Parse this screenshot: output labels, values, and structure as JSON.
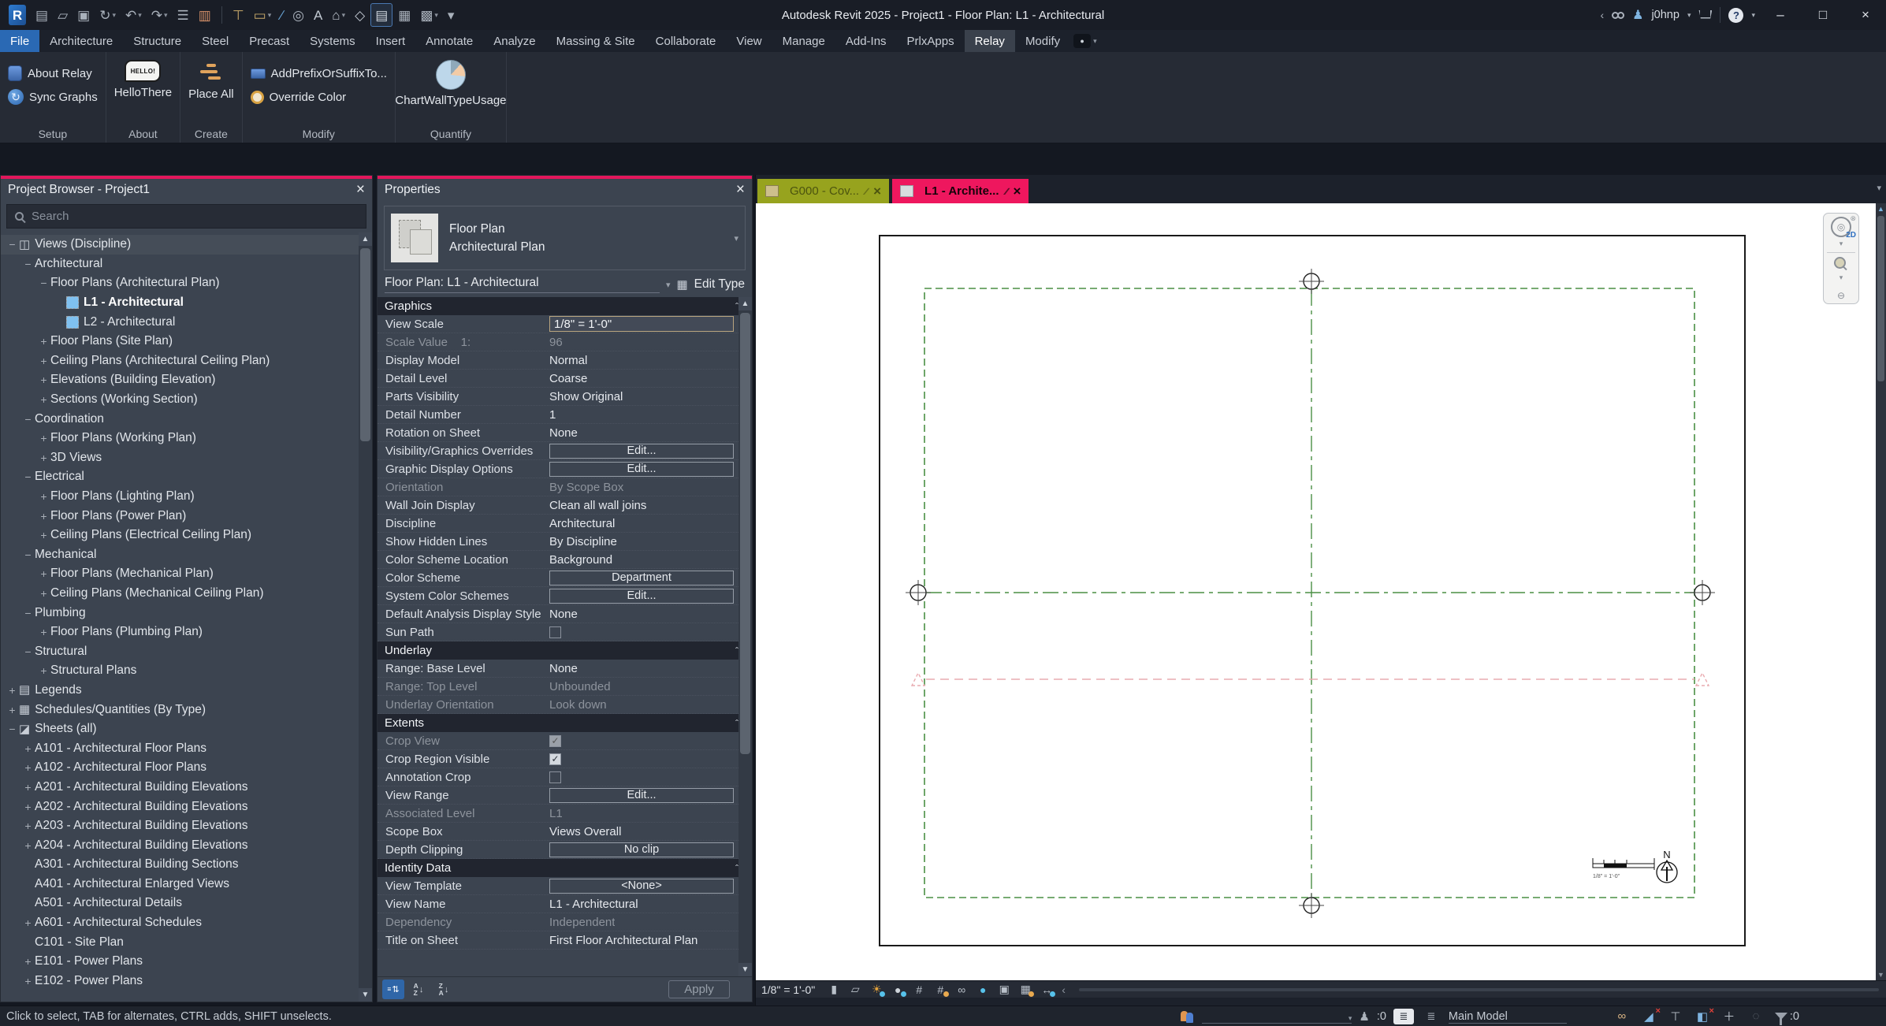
{
  "colors": {
    "accent": "#e2175c",
    "tab_olive": "#97a31e",
    "tab_active_pink": "#ee175e",
    "grid_green": "#4a8f44",
    "marker_pink": "#e9abb0",
    "file_tab_blue": "#2a69b4",
    "level_icon_blue": "#7fc0ef"
  },
  "titlebar": {
    "title": "Autodesk Revit 2025 - Project1 - Floor Plan: L1 - Architectural",
    "username": "j0hnp",
    "qat": [
      {
        "icon": "revit-logo"
      },
      {
        "icon": "document-icon"
      },
      {
        "icon": "open-icon"
      },
      {
        "icon": "save-icon"
      },
      {
        "icon": "sync-with-central-icon",
        "dropdown": true
      },
      {
        "icon": "undo-icon",
        "dropdown": true
      },
      {
        "icon": "redo-icon",
        "dropdown": true
      },
      {
        "icon": "print-icon"
      },
      {
        "icon": "export-icon"
      },
      {
        "sep": true
      },
      {
        "icon": "measure-icon"
      },
      {
        "icon": "aligned-dimension-icon",
        "dropdown": true
      },
      {
        "icon": "detail-line-icon"
      },
      {
        "icon": "tag-by-category-icon"
      },
      {
        "icon": "text-icon"
      },
      {
        "icon": "default-3d-view-icon",
        "dropdown": true
      },
      {
        "icon": "section-icon"
      },
      {
        "icon": "thin-lines-icon",
        "active": true
      },
      {
        "icon": "close-inactive-windows-icon"
      },
      {
        "icon": "switch-windows-icon",
        "dropdown": true
      },
      {
        "icon": "customize-qat-icon"
      }
    ]
  },
  "ribbon": {
    "tabs": [
      {
        "label": "File",
        "variant": "file"
      },
      {
        "label": "Architecture"
      },
      {
        "label": "Structure"
      },
      {
        "label": "Steel"
      },
      {
        "label": "Precast"
      },
      {
        "label": "Systems"
      },
      {
        "label": "Insert"
      },
      {
        "label": "Annotate"
      },
      {
        "label": "Analyze"
      },
      {
        "label": "Massing & Site"
      },
      {
        "label": "Collaborate"
      },
      {
        "label": "View"
      },
      {
        "label": "Manage"
      },
      {
        "label": "Add-Ins"
      },
      {
        "label": "PrlxApps"
      },
      {
        "label": "Relay",
        "variant": "active"
      },
      {
        "label": "Modify"
      }
    ],
    "groups": [
      {
        "label": "Setup",
        "items": [
          {
            "label": "About Relay",
            "icon": "about-relay-icon",
            "size": "small"
          },
          {
            "label": "Sync Graphs",
            "icon": "sync-graphs-icon",
            "size": "small"
          }
        ]
      },
      {
        "label": "About",
        "items": [
          {
            "label": "HelloThere",
            "icon": "hello-there-icon",
            "size": "large"
          }
        ]
      },
      {
        "label": "Create",
        "items": [
          {
            "label": "Place All",
            "icon": "place-all-icon",
            "size": "large"
          }
        ]
      },
      {
        "label": "Modify",
        "items": [
          {
            "label": "AddPrefixOrSuffixTo...",
            "icon": "add-prefix-or-suffix-icon",
            "size": "small"
          },
          {
            "label": "Override Color",
            "icon": "override-color-icon",
            "size": "small"
          }
        ]
      },
      {
        "label": "Quantify",
        "items": [
          {
            "label": "ChartWallTypeUsage",
            "icon": "chart-wall-type-usage-icon",
            "size": "large"
          }
        ]
      }
    ]
  },
  "project_browser": {
    "title": "Project Browser - Project1",
    "search_placeholder": "Search",
    "tree": [
      {
        "label": "Views (Discipline)",
        "level": 0,
        "exp": "-",
        "icon": "views-icon",
        "hl": true
      },
      {
        "label": "Architectural",
        "level": 1,
        "exp": "-"
      },
      {
        "label": "Floor Plans (Architectural Plan)",
        "level": 2,
        "exp": "-"
      },
      {
        "label": "L1 - Architectural",
        "level": 3,
        "icon": "level-icon",
        "selected": true
      },
      {
        "label": "L2 - Architectural",
        "level": 3,
        "icon": "level-icon"
      },
      {
        "label": "Floor Plans (Site Plan)",
        "level": 2,
        "exp": "+"
      },
      {
        "label": "Ceiling Plans (Architectural Ceiling Plan)",
        "level": 2,
        "exp": "+"
      },
      {
        "label": "Elevations (Building Elevation)",
        "level": 2,
        "exp": "+"
      },
      {
        "label": "Sections (Working Section)",
        "level": 2,
        "exp": "+"
      },
      {
        "label": "Coordination",
        "level": 1,
        "exp": "-"
      },
      {
        "label": "Floor Plans (Working Plan)",
        "level": 2,
        "exp": "+"
      },
      {
        "label": "3D Views",
        "level": 2,
        "exp": "+"
      },
      {
        "label": "Electrical",
        "level": 1,
        "exp": "-"
      },
      {
        "label": "Floor Plans (Lighting Plan)",
        "level": 2,
        "exp": "+"
      },
      {
        "label": "Floor Plans (Power Plan)",
        "level": 2,
        "exp": "+"
      },
      {
        "label": "Ceiling Plans (Electrical Ceiling Plan)",
        "level": 2,
        "exp": "+"
      },
      {
        "label": "Mechanical",
        "level": 1,
        "exp": "-"
      },
      {
        "label": "Floor Plans (Mechanical Plan)",
        "level": 2,
        "exp": "+"
      },
      {
        "label": "Ceiling Plans (Mechanical Ceiling Plan)",
        "level": 2,
        "exp": "+"
      },
      {
        "label": "Plumbing",
        "level": 1,
        "exp": "-"
      },
      {
        "label": "Floor Plans (Plumbing Plan)",
        "level": 2,
        "exp": "+"
      },
      {
        "label": "Structural",
        "level": 1,
        "exp": "-"
      },
      {
        "label": "Structural Plans",
        "level": 2,
        "exp": "+"
      },
      {
        "label": "Legends",
        "level": 0,
        "exp": "+",
        "icon": "legends-icon"
      },
      {
        "label": "Schedules/Quantities (By Type)",
        "level": 0,
        "exp": "+",
        "icon": "schedules-icon"
      },
      {
        "label": "Sheets (all)",
        "level": 0,
        "exp": "-",
        "icon": "sheets-icon"
      },
      {
        "label": "A101 - Architectural Floor Plans",
        "level": 1,
        "exp": "+"
      },
      {
        "label": "A102 - Architectural Floor Plans",
        "level": 1,
        "exp": "+"
      },
      {
        "label": "A201 - Architectural Building Elevations",
        "level": 1,
        "exp": "+"
      },
      {
        "label": "A202 - Architectural Building Elevations",
        "level": 1,
        "exp": "+"
      },
      {
        "label": "A203 - Architectural Building Elevations",
        "level": 1,
        "exp": "+"
      },
      {
        "label": "A204 - Architectural Building Elevations",
        "level": 1,
        "exp": "+"
      },
      {
        "label": "A301 - Architectural Building Sections",
        "level": 1
      },
      {
        "label": "A401 - Architectural Enlarged Views",
        "level": 1
      },
      {
        "label": "A501 - Architectural Details",
        "level": 1
      },
      {
        "label": "A601 - Architectural Schedules",
        "level": 1,
        "exp": "+"
      },
      {
        "label": "C101 - Site Plan",
        "level": 1
      },
      {
        "label": "E101 - Power Plans",
        "level": 1,
        "exp": "+"
      },
      {
        "label": "E102 - Power Plans",
        "level": 1,
        "exp": "+"
      }
    ]
  },
  "properties": {
    "title": "Properties",
    "type_line1": "Floor Plan",
    "type_line2": "Architectural Plan",
    "instance_label": "Floor Plan: L1 - Architectural",
    "edit_type_label": "Edit Type",
    "apply_label": "Apply",
    "rows": [
      {
        "section": "Graphics"
      },
      {
        "label": "View Scale",
        "value": "1/8\" = 1'-0\"",
        "kind": "input"
      },
      {
        "label": "Scale Value    1:",
        "value": "96",
        "kind": "text",
        "disabled": true
      },
      {
        "label": "Display Model",
        "value": "Normal",
        "kind": "text"
      },
      {
        "label": "Detail Level",
        "value": "Coarse",
        "kind": "text"
      },
      {
        "label": "Parts Visibility",
        "value": "Show Original",
        "kind": "text"
      },
      {
        "label": "Detail Number",
        "value": "1",
        "kind": "text"
      },
      {
        "label": "Rotation on Sheet",
        "value": "None",
        "kind": "text"
      },
      {
        "label": "Visibility/Graphics Overrides",
        "value": "Edit...",
        "kind": "button"
      },
      {
        "label": "Graphic Display Options",
        "value": "Edit...",
        "kind": "button"
      },
      {
        "label": "Orientation",
        "value": "By Scope Box",
        "kind": "text",
        "disabled": true
      },
      {
        "label": "Wall Join Display",
        "value": "Clean all wall joins",
        "kind": "text"
      },
      {
        "label": "Discipline",
        "value": "Architectural",
        "kind": "text"
      },
      {
        "label": "Show Hidden Lines",
        "value": "By Discipline",
        "kind": "text"
      },
      {
        "label": "Color Scheme Location",
        "value": "Background",
        "kind": "text"
      },
      {
        "label": "Color Scheme",
        "value": "Department",
        "kind": "button"
      },
      {
        "label": "System Color Schemes",
        "value": "Edit...",
        "kind": "button"
      },
      {
        "label": "Default Analysis Display Style",
        "value": "None",
        "kind": "text"
      },
      {
        "label": "Sun Path",
        "kind": "check-off"
      },
      {
        "section": "Underlay"
      },
      {
        "label": "Range: Base Level",
        "value": "None",
        "kind": "text"
      },
      {
        "label": "Range: Top Level",
        "value": "Unbounded",
        "kind": "text",
        "disabled": true
      },
      {
        "label": "Underlay Orientation",
        "value": "Look down",
        "kind": "text",
        "disabled": true
      },
      {
        "section": "Extents"
      },
      {
        "label": "Crop View",
        "kind": "check-on",
        "disabled": true
      },
      {
        "label": "Crop Region Visible",
        "kind": "check-on"
      },
      {
        "label": "Annotation Crop",
        "kind": "check-off"
      },
      {
        "label": "View Range",
        "value": "Edit...",
        "kind": "button"
      },
      {
        "label": "Associated Level",
        "value": "L1",
        "kind": "text",
        "disabled": true
      },
      {
        "label": "Scope Box",
        "value": "Views Overall",
        "kind": "text"
      },
      {
        "label": "Depth Clipping",
        "value": "No clip",
        "kind": "button"
      },
      {
        "section": "Identity Data"
      },
      {
        "label": "View Template",
        "value": "<None>",
        "kind": "button"
      },
      {
        "label": "View Name",
        "value": "L1 - Architectural",
        "kind": "text"
      },
      {
        "label": "Dependency",
        "value": "Independent",
        "kind": "text",
        "disabled": true
      },
      {
        "label": "Title on Sheet",
        "value": "First Floor Architectural Plan",
        "kind": "text"
      }
    ]
  },
  "view_tabs": [
    {
      "label": "G000 - Cov...",
      "icon": "sheet-tab-icon",
      "variant": "olive"
    },
    {
      "label": "L1 - Archite...",
      "icon": "plan-tab-icon",
      "variant": "pink",
      "active": true
    }
  ],
  "view_control_bar": {
    "scale": "1/8\" = 1'-0\"",
    "icons": [
      "detail-level-icon",
      "visual-style-icon",
      "sun-path-icon",
      "shadows-icon",
      "crop-view-icon",
      "show-crop-region-icon",
      "temporary-hide-isolate-icon",
      "reveal-hidden-elements-icon",
      "temporary-view-properties-icon",
      "analytical-model-icon",
      "reveal-constraints-icon"
    ]
  },
  "canvas": {
    "north_label": "N",
    "scalebar_label": "1/8\" = 1'-0\"",
    "nav_2d_label": "2D"
  },
  "status_bar": {
    "hint": "Click to select, TAB for alternates, CTRL adds, SHIFT unselects.",
    "editing_requests_count": ":0",
    "main_model_label": "Main Model",
    "filter_count": ":0",
    "right_icons": [
      "select-links-icon",
      "select-underlay-elements-icon",
      "select-pinned-elements-icon",
      "select-elements-by-face-icon",
      "drag-elements-on-selection-icon",
      "progress-indicator-icon"
    ]
  }
}
